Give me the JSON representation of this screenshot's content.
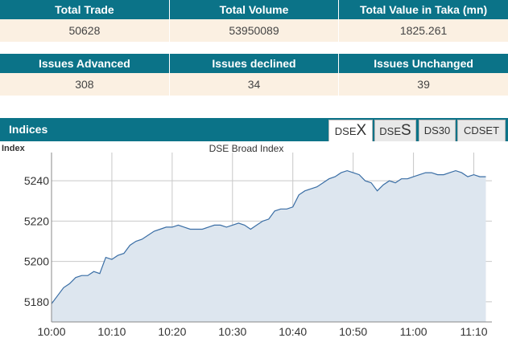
{
  "market_summary": {
    "headers": [
      "Total Trade",
      "Total Volume",
      "Total Value in Taka (mn)"
    ],
    "values": [
      "50628",
      "53950089",
      "1825.261"
    ]
  },
  "issues_summary": {
    "headers": [
      "Issues Advanced",
      "Issues declined",
      "Issues Unchanged"
    ],
    "values": [
      "308",
      "34",
      "39"
    ]
  },
  "indices": {
    "title": "Indices",
    "tabs": [
      {
        "prefix": "DSE",
        "suffix": "X",
        "active": true
      },
      {
        "prefix": "DSE",
        "suffix": "S",
        "active": false
      },
      {
        "prefix": "DS30",
        "suffix": "",
        "active": false
      },
      {
        "prefix": "CDSET",
        "suffix": "",
        "active": false
      }
    ]
  },
  "chart_data": {
    "type": "area",
    "title": "DSE Broad Index",
    "ylabel": "Index",
    "xlabel": "",
    "x_ticks": [
      "10:00",
      "10:10",
      "10:20",
      "10:30",
      "10:40",
      "10:50",
      "11:00",
      "11:10"
    ],
    "y_ticks": [
      5180,
      5200,
      5220,
      5240
    ],
    "ylim": [
      5170,
      5254
    ],
    "x_minutes_range": [
      0,
      73
    ],
    "grid": true,
    "line_color": "#3a6ea5",
    "fill_color": "#dde6ef",
    "series": [
      {
        "x": [
          0,
          1,
          2,
          3,
          4,
          5,
          6,
          7,
          8,
          9,
          10,
          11,
          12,
          13,
          14,
          15,
          16,
          17,
          18,
          19,
          20,
          21,
          22,
          23,
          24,
          25,
          26,
          27,
          28,
          29,
          30,
          31,
          32,
          33,
          34,
          35,
          36,
          37,
          38,
          39,
          40,
          41,
          42,
          43,
          44,
          45,
          46,
          47,
          48,
          49,
          50,
          51,
          52,
          53,
          54,
          55,
          56,
          57,
          58,
          59,
          60,
          61,
          62,
          63,
          64,
          65,
          66,
          67,
          68,
          69,
          70,
          71,
          72
        ],
        "values": [
          5179,
          5183,
          5187,
          5189,
          5192,
          5193,
          5193,
          5195,
          5194,
          5202,
          5201,
          5203,
          5204,
          5208,
          5210,
          5211,
          5213,
          5215,
          5216,
          5217,
          5217,
          5218,
          5217,
          5216,
          5216,
          5216,
          5217,
          5218,
          5218,
          5217,
          5218,
          5219,
          5218,
          5216,
          5218,
          5220,
          5221,
          5225,
          5226,
          5226,
          5227,
          5233,
          5235,
          5236,
          5237,
          5239,
          5241,
          5242,
          5244,
          5245,
          5244,
          5243,
          5240,
          5239,
          5235,
          5238,
          5240,
          5239,
          5241,
          5241,
          5242,
          5243,
          5244,
          5244,
          5243,
          5243,
          5244,
          5245,
          5244,
          5242,
          5243,
          5242,
          5242
        ]
      }
    ]
  }
}
